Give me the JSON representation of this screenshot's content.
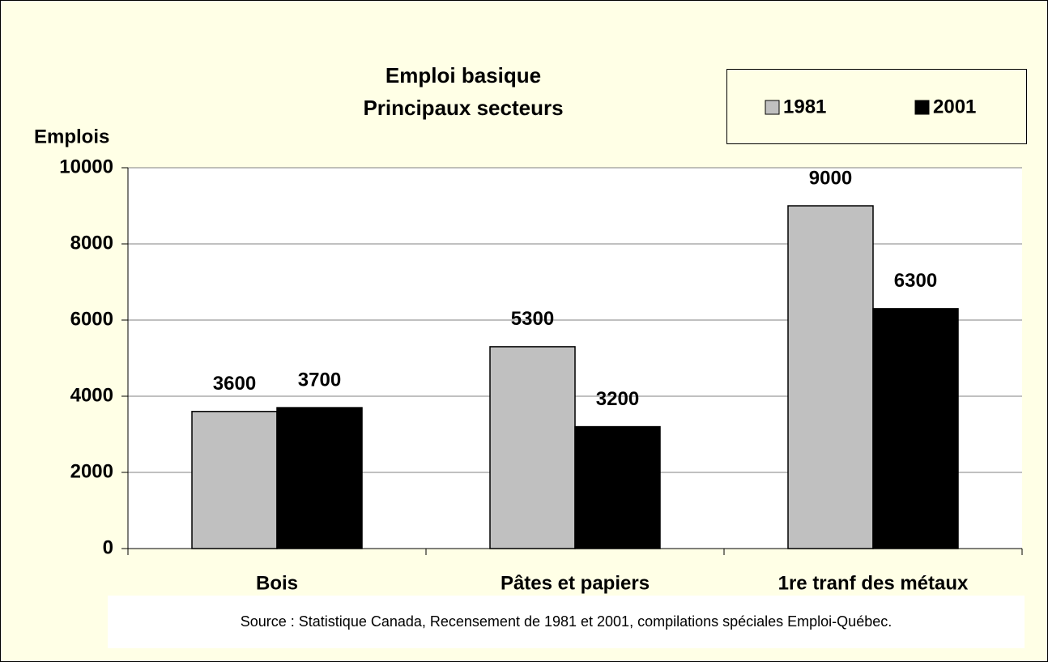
{
  "chart_data": {
    "type": "bar",
    "title": "Emploi basique",
    "subtitle": "Principaux secteurs",
    "y_label": "Emplois",
    "categories": [
      "Bois",
      "Pâtes et papiers",
      "1re tranf des métaux"
    ],
    "series": [
      {
        "name": "1981",
        "color": "#c0c0c0",
        "values": [
          3600,
          5300,
          9000
        ]
      },
      {
        "name": "2001",
        "color": "#000000",
        "values": [
          3700,
          3200,
          6300
        ]
      }
    ],
    "ylim": [
      0,
      10000
    ],
    "yticks": [
      0,
      2000,
      4000,
      6000,
      8000,
      10000
    ],
    "grid": true,
    "legend": "top-right",
    "source": "Source : Statistique Canada, Recensement de 1981 et 2001, compilations spéciales Emploi-Québec."
  }
}
